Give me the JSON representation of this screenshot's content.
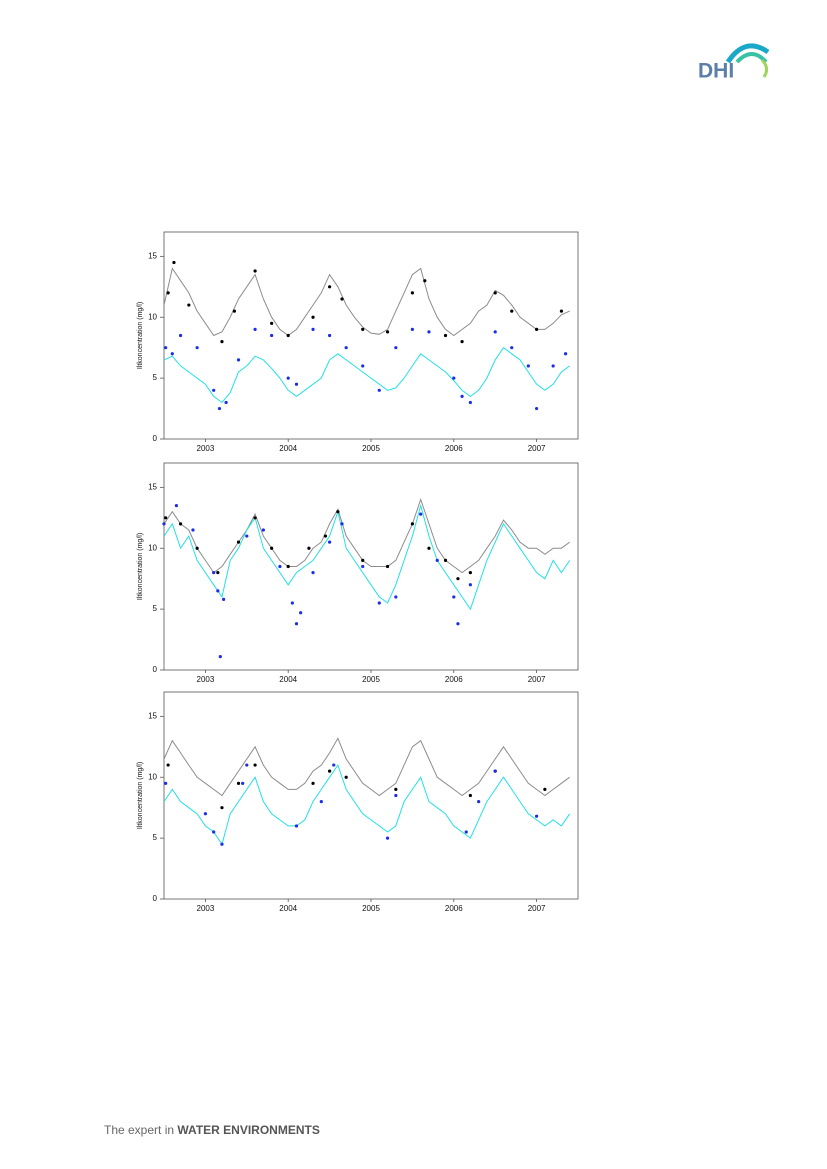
{
  "logo": {
    "text": "DHI"
  },
  "footer": {
    "prefix": "The expert in",
    "emphasis": "WATER ENVIRONMENTS"
  },
  "chart_data": [
    {
      "type": "line",
      "y_label": "Iltkoncentration (mg/l)",
      "xlim": [
        2003,
        2008
      ],
      "ylim": [
        0,
        17
      ],
      "yticks": [
        0,
        5,
        10,
        15
      ],
      "xticks": [
        {
          "value": 2003.5,
          "label": "2003"
        },
        {
          "value": 2004.5,
          "label": "2004"
        },
        {
          "value": 2005.5,
          "label": "2005"
        },
        {
          "value": 2006.5,
          "label": "2006"
        },
        {
          "value": 2007.5,
          "label": "2007"
        }
      ],
      "x": [
        2003,
        2003.1,
        2003.2,
        2003.3,
        2003.4,
        2003.5,
        2003.6,
        2003.7,
        2003.8,
        2003.9,
        2004,
        2004.1,
        2004.2,
        2004.3,
        2004.4,
        2004.5,
        2004.6,
        2004.7,
        2004.8,
        2004.9,
        2005,
        2005.1,
        2005.2,
        2005.3,
        2005.4,
        2005.5,
        2005.6,
        2005.7,
        2005.8,
        2005.9,
        2006,
        2006.1,
        2006.2,
        2006.3,
        2006.4,
        2006.5,
        2006.6,
        2006.7,
        2006.8,
        2006.9,
        2007,
        2007.1,
        2007.2,
        2007.3,
        2007.4,
        2007.5,
        2007.6,
        2007.7,
        2007.8,
        2007.9
      ],
      "series": [
        {
          "style": "line",
          "color": "#8c8c8c",
          "values": [
            11,
            14,
            13,
            12,
            10.5,
            9.5,
            8.5,
            8.8,
            10,
            11.5,
            12.5,
            13.5,
            11.5,
            10,
            9,
            8.5,
            9,
            10,
            11,
            12,
            13.5,
            12.5,
            11,
            10,
            9.2,
            8.7,
            8.6,
            9,
            10.5,
            12,
            13.5,
            14,
            11.5,
            10,
            9,
            8.5,
            9,
            9.5,
            10.5,
            11,
            12.2,
            11.8,
            11,
            10,
            9.5,
            9,
            9,
            9.5,
            10.2,
            10.5
          ]
        },
        {
          "style": "line",
          "color": "#22e0e6",
          "values": [
            6.5,
            6.8,
            6,
            5.5,
            5,
            4.5,
            3.5,
            3,
            3.8,
            5.5,
            6,
            6.8,
            6.5,
            5.8,
            5,
            4,
            3.5,
            4,
            4.5,
            5,
            6.5,
            7,
            6.5,
            6,
            5.5,
            5,
            4.5,
            4,
            4.2,
            5,
            6,
            7,
            6.5,
            6,
            5.5,
            4.8,
            4,
            3.5,
            4,
            5,
            6.5,
            7.5,
            7,
            6.5,
            5.5,
            4.5,
            4,
            4.5,
            5.5,
            6
          ]
        },
        {
          "style": "points",
          "color": "#000000",
          "x": [
            2003.05,
            2003.12,
            2003.3,
            2003.7,
            2003.85,
            2004.1,
            2004.3,
            2004.5,
            2004.8,
            2005,
            2005.15,
            2005.4,
            2005.7,
            2006,
            2006.15,
            2006.4,
            2006.6,
            2007,
            2007.2,
            2007.5,
            2007.8
          ],
          "values": [
            12,
            14.5,
            11,
            8,
            10.5,
            13.8,
            9.5,
            8.5,
            10,
            12.5,
            11.5,
            9,
            8.8,
            12,
            13,
            8.5,
            8,
            12,
            10.5,
            9,
            10.5
          ]
        },
        {
          "style": "points",
          "color": "#1a2ee8",
          "x": [
            2003.02,
            2003.1,
            2003.2,
            2003.4,
            2003.6,
            2003.67,
            2003.75,
            2003.9,
            2004.1,
            2004.3,
            2004.5,
            2004.6,
            2004.8,
            2005,
            2005.2,
            2005.4,
            2005.6,
            2005.8,
            2006,
            2006.2,
            2006.5,
            2006.6,
            2006.7,
            2007,
            2007.2,
            2007.4,
            2007.5,
            2007.7,
            2007.85
          ],
          "values": [
            7.5,
            7,
            8.5,
            7.5,
            4,
            2.5,
            3,
            6.5,
            9,
            8.5,
            5,
            4.5,
            9,
            8.5,
            7.5,
            6,
            4,
            7.5,
            9,
            8.8,
            5,
            3.5,
            3,
            8.8,
            7.5,
            6,
            2.5,
            6,
            7
          ]
        }
      ]
    },
    {
      "type": "line",
      "y_label": "Iltkoncentration (mg/l)",
      "xlim": [
        2003,
        2008
      ],
      "ylim": [
        0,
        17
      ],
      "yticks": [
        0,
        5,
        10,
        15
      ],
      "xticks": [
        {
          "value": 2003.5,
          "label": "2003"
        },
        {
          "value": 2004.5,
          "label": "2004"
        },
        {
          "value": 2005.5,
          "label": "2005"
        },
        {
          "value": 2006.5,
          "label": "2006"
        },
        {
          "value": 2007.5,
          "label": "2007"
        }
      ],
      "x": [
        2003,
        2003.1,
        2003.2,
        2003.3,
        2003.4,
        2003.5,
        2003.6,
        2003.7,
        2003.8,
        2003.9,
        2004,
        2004.1,
        2004.2,
        2004.3,
        2004.4,
        2004.5,
        2004.6,
        2004.7,
        2004.8,
        2004.9,
        2005,
        2005.1,
        2005.2,
        2005.3,
        2005.4,
        2005.5,
        2005.6,
        2005.7,
        2005.8,
        2005.9,
        2006,
        2006.1,
        2006.2,
        2006.3,
        2006.4,
        2006.5,
        2006.6,
        2006.7,
        2006.8,
        2006.9,
        2007,
        2007.1,
        2007.2,
        2007.3,
        2007.4,
        2007.5,
        2007.6,
        2007.7,
        2007.8,
        2007.9
      ],
      "series": [
        {
          "style": "line",
          "color": "#8c8c8c",
          "values": [
            12,
            13,
            12,
            11.5,
            10,
            9,
            8,
            8.5,
            9.5,
            10.5,
            11.5,
            12.8,
            11,
            10,
            9,
            8.5,
            8.5,
            9,
            10,
            10.5,
            12,
            13.2,
            11,
            10,
            9,
            8.5,
            8.5,
            8.5,
            9,
            10.5,
            12,
            14,
            12,
            10,
            9,
            8.5,
            8,
            8.5,
            9,
            10,
            11,
            12.3,
            11.5,
            10.5,
            10,
            10,
            9.5,
            10,
            10,
            10.5
          ]
        },
        {
          "style": "line",
          "color": "#22e0e6",
          "values": [
            11,
            12,
            10,
            11,
            9,
            8,
            7,
            6,
            9,
            10,
            11.5,
            12.5,
            10,
            9,
            8,
            7,
            8,
            8.5,
            9,
            10,
            11,
            13,
            10,
            9,
            8,
            7,
            6,
            5.5,
            7,
            9,
            11,
            13.5,
            11,
            9,
            8,
            7,
            6,
            5,
            7,
            9,
            10.5,
            12,
            11,
            10,
            9,
            8,
            7.5,
            9,
            8,
            9
          ]
        },
        {
          "style": "points",
          "color": "#000000",
          "x": [
            2003.02,
            2003.2,
            2003.4,
            2003.65,
            2003.9,
            2004.1,
            2004.3,
            2004.5,
            2004.75,
            2004.95,
            2005.1,
            2005.4,
            2005.7,
            2006,
            2006.2,
            2006.4,
            2006.55,
            2006.7
          ],
          "values": [
            12.5,
            12,
            10,
            8,
            10.5,
            12.5,
            10,
            8.5,
            10,
            11,
            13,
            9,
            8.5,
            12,
            10,
            9,
            7.5,
            8
          ]
        },
        {
          "style": "points",
          "color": "#1a2ee8",
          "x": [
            2003,
            2003.15,
            2003.35,
            2003.6,
            2003.65,
            2003.72,
            2003.68,
            2004,
            2004.2,
            2004.4,
            2004.55,
            2004.6,
            2004.65,
            2004.8,
            2005,
            2005.15,
            2005.4,
            2005.6,
            2005.8,
            2006.1,
            2006.3,
            2006.5,
            2006.55,
            2006.7
          ],
          "values": [
            12,
            13.5,
            11.5,
            8,
            6.5,
            5.8,
            1.1,
            11,
            11.5,
            8.5,
            5.5,
            3.8,
            4.7,
            8,
            10.5,
            12,
            8.5,
            5.5,
            6,
            12.8,
            9,
            6,
            3.8,
            7
          ]
        }
      ]
    },
    {
      "type": "line",
      "y_label": "Iltkoncentration (mg/l)",
      "xlim": [
        2003,
        2008
      ],
      "ylim": [
        0,
        17
      ],
      "yticks": [
        0,
        5,
        10,
        15
      ],
      "xticks": [
        {
          "value": 2003.5,
          "label": "2003"
        },
        {
          "value": 2004.5,
          "label": "2004"
        },
        {
          "value": 2005.5,
          "label": "2005"
        },
        {
          "value": 2006.5,
          "label": "2006"
        },
        {
          "value": 2007.5,
          "label": "2007"
        }
      ],
      "x": [
        2003,
        2003.1,
        2003.2,
        2003.3,
        2003.4,
        2003.5,
        2003.6,
        2003.7,
        2003.8,
        2003.9,
        2004,
        2004.1,
        2004.2,
        2004.3,
        2004.4,
        2004.5,
        2004.6,
        2004.7,
        2004.8,
        2004.9,
        2005,
        2005.1,
        2005.2,
        2005.3,
        2005.4,
        2005.5,
        2005.6,
        2005.7,
        2005.8,
        2005.9,
        2006,
        2006.1,
        2006.2,
        2006.3,
        2006.4,
        2006.5,
        2006.6,
        2006.7,
        2006.8,
        2006.9,
        2007,
        2007.1,
        2007.2,
        2007.3,
        2007.4,
        2007.5,
        2007.6,
        2007.7,
        2007.8,
        2007.9
      ],
      "series": [
        {
          "style": "line",
          "color": "#8c8c8c",
          "values": [
            11.5,
            13,
            12,
            11,
            10,
            9.5,
            9,
            8.5,
            9.5,
            10.5,
            11.5,
            12.5,
            11,
            10,
            9.5,
            9,
            9,
            9.5,
            10.5,
            11,
            12,
            13.2,
            11.5,
            10.5,
            9.5,
            9,
            8.5,
            9,
            9.5,
            11,
            12.5,
            13,
            11.5,
            10,
            9.5,
            9,
            8.5,
            9,
            9.5,
            10.5,
            11.5,
            12.5,
            11.5,
            10.5,
            9.5,
            9,
            8.5,
            9,
            9.5,
            10
          ]
        },
        {
          "style": "line",
          "color": "#22e0e6",
          "values": [
            8,
            9,
            8,
            7.5,
            7,
            6,
            5.5,
            4.5,
            7,
            8,
            9,
            10,
            8,
            7,
            6.5,
            6,
            6,
            6.5,
            8,
            9,
            10,
            11,
            9,
            8,
            7,
            6.5,
            6,
            5.5,
            6,
            8,
            9,
            10,
            8,
            7.5,
            7,
            6,
            5.5,
            5,
            6.5,
            8,
            9,
            10,
            9,
            8,
            7,
            6.5,
            6,
            6.5,
            6,
            7
          ]
        },
        {
          "style": "points",
          "color": "#000000",
          "x": [
            2003.05,
            2003.7,
            2003.9,
            2004.1,
            2004.8,
            2005,
            2005.2,
            2005.8,
            2006.7,
            2007,
            2007.6
          ],
          "values": [
            11,
            7.5,
            9.5,
            11,
            9.5,
            10.5,
            10,
            9,
            8.5,
            10.5,
            9
          ]
        },
        {
          "style": "points",
          "color": "#1a2ee8",
          "x": [
            2003.02,
            2003.5,
            2003.6,
            2003.7,
            2003.95,
            2004,
            2004.6,
            2004.9,
            2005.05,
            2005.7,
            2005.8,
            2006.65,
            2006.8,
            2007,
            2007.5
          ],
          "values": [
            9.5,
            7,
            5.5,
            4.5,
            9.5,
            11,
            6,
            8,
            11,
            5,
            8.5,
            5.5,
            8,
            10.5,
            6.8
          ]
        }
      ]
    }
  ]
}
